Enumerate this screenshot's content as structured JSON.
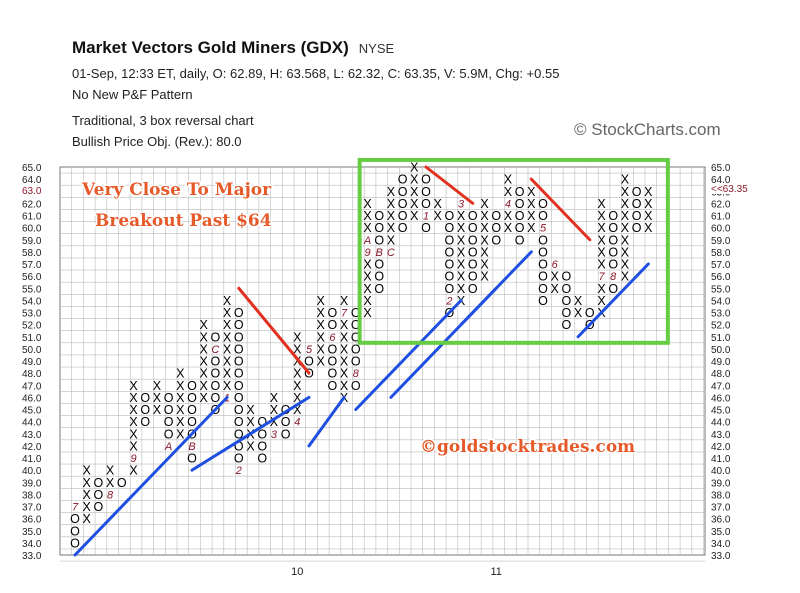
{
  "header": {
    "title": "Market Vectors Gold Miners (GDX)",
    "exchange": "NYSE",
    "quote": "01-Sep, 12:33 ET, daily, O: 62.89, H: 63.568, L: 62.32, C: 63.35, V: 5.9M, Chg: +0.55",
    "pattern": "No New P&F Pattern",
    "chart_type": "Traditional, 3 box reversal chart",
    "price_objective": "Bullish Price Obj. (Rev.): 80.0",
    "watermark": "© StockCharts.com"
  },
  "chart_data": {
    "type": "point-and-figure",
    "box_size": 1,
    "reversal": 3,
    "ylim": [
      33,
      65
    ],
    "y_ticks": [
      33,
      34,
      35,
      36,
      37,
      38,
      39,
      40,
      41,
      42,
      43,
      44,
      45,
      46,
      47,
      48,
      49,
      50,
      51,
      52,
      53,
      54,
      55,
      56,
      57,
      58,
      59,
      60,
      61,
      62,
      63,
      64,
      65
    ],
    "x_month_labels": [
      {
        "label": "10",
        "column": 19
      },
      {
        "label": "11",
        "column": 36
      }
    ],
    "grid": true,
    "columns": [
      {
        "type": "O",
        "low": 34,
        "high": 37,
        "labels": {
          "37": "7"
        }
      },
      {
        "type": "X",
        "low": 36,
        "high": 40
      },
      {
        "type": "O",
        "low": 37,
        "high": 39
      },
      {
        "type": "X",
        "low": 38,
        "high": 40,
        "labels": {
          "38": "8"
        }
      },
      {
        "type": "O",
        "low": 39,
        "high": 39
      },
      {
        "type": "X",
        "low": 40,
        "high": 47,
        "labels": {
          "41": "9"
        }
      },
      {
        "type": "O",
        "low": 44,
        "high": 46
      },
      {
        "type": "X",
        "low": 45,
        "high": 47
      },
      {
        "type": "O",
        "low": 42,
        "high": 46,
        "labels": {
          "42": "A"
        }
      },
      {
        "type": "X",
        "low": 43,
        "high": 48
      },
      {
        "type": "O",
        "low": 41,
        "high": 47,
        "labels": {
          "42": "B"
        }
      },
      {
        "type": "X",
        "low": 46,
        "high": 52
      },
      {
        "type": "O",
        "low": 45,
        "high": 51,
        "labels": {
          "50": "C"
        }
      },
      {
        "type": "X",
        "low": 46,
        "high": 54,
        "labels": {
          "46": "1"
        }
      },
      {
        "type": "O",
        "low": 40,
        "high": 53,
        "labels": {
          "40": "2"
        }
      },
      {
        "type": "X",
        "low": 42,
        "high": 45
      },
      {
        "type": "O",
        "low": 41,
        "high": 44
      },
      {
        "type": "X",
        "low": 43,
        "high": 46,
        "labels": {
          "43": "3"
        }
      },
      {
        "type": "O",
        "low": 43,
        "high": 45
      },
      {
        "type": "X",
        "low": 44,
        "high": 51,
        "labels": {
          "44": "4"
        }
      },
      {
        "type": "O",
        "low": 48,
        "high": 50,
        "labels": {
          "50": "5"
        }
      },
      {
        "type": "X",
        "low": 49,
        "high": 54
      },
      {
        "type": "O",
        "low": 47,
        "high": 53,
        "labels": {
          "51": "6"
        }
      },
      {
        "type": "X",
        "low": 46,
        "high": 54,
        "labels": {
          "53": "7"
        }
      },
      {
        "type": "O",
        "low": 47,
        "high": 53,
        "labels": {
          "48": "8"
        }
      },
      {
        "type": "X",
        "low": 53,
        "high": 62,
        "labels": {
          "58": "9",
          "59": "A"
        }
      },
      {
        "type": "O",
        "low": 55,
        "high": 61,
        "labels": {
          "58": "B"
        }
      },
      {
        "type": "X",
        "low": 58,
        "high": 63,
        "labels": {
          "58": "C"
        }
      },
      {
        "type": "O",
        "low": 60,
        "high": 64
      },
      {
        "type": "X",
        "low": 61,
        "high": 65
      },
      {
        "type": "O",
        "low": 60,
        "high": 64,
        "labels": {
          "61": "1"
        }
      },
      {
        "type": "X",
        "low": 61,
        "high": 62
      },
      {
        "type": "O",
        "low": 53,
        "high": 61,
        "labels": {
          "54": "2"
        }
      },
      {
        "type": "X",
        "low": 54,
        "high": 62,
        "labels": {
          "62": "3"
        }
      },
      {
        "type": "O",
        "low": 55,
        "high": 61
      },
      {
        "type": "X",
        "low": 56,
        "high": 62
      },
      {
        "type": "O",
        "low": 59,
        "high": 61
      },
      {
        "type": "X",
        "low": 60,
        "high": 64,
        "labels": {
          "62": "4"
        }
      },
      {
        "type": "O",
        "low": 59,
        "high": 63
      },
      {
        "type": "X",
        "low": 60,
        "high": 63
      },
      {
        "type": "O",
        "low": 54,
        "high": 62,
        "labels": {
          "60": "5"
        }
      },
      {
        "type": "X",
        "low": 55,
        "high": 57,
        "labels": {
          "57": "6"
        }
      },
      {
        "type": "O",
        "low": 52,
        "high": 56
      },
      {
        "type": "X",
        "low": 53,
        "high": 54
      },
      {
        "type": "O",
        "low": 52,
        "high": 53
      },
      {
        "type": "X",
        "low": 53,
        "high": 62,
        "labels": {
          "56": "7"
        }
      },
      {
        "type": "O",
        "low": 55,
        "high": 61,
        "labels": {
          "56": "8"
        }
      },
      {
        "type": "X",
        "low": 56,
        "high": 64
      },
      {
        "type": "O",
        "low": 60,
        "high": 63
      },
      {
        "type": "X",
        "low": 60,
        "high": 63
      }
    ],
    "trend_lines": [
      {
        "color": "#1f4fe0",
        "kind": "support",
        "from": [
          0,
          33
        ],
        "to": [
          13,
          46
        ]
      },
      {
        "color": "#1f4fe0",
        "kind": "support",
        "from": [
          10,
          40
        ],
        "to": [
          20,
          46
        ]
      },
      {
        "color": "#1f4fe0",
        "kind": "support",
        "from": [
          20,
          42
        ],
        "to": [
          23,
          46
        ]
      },
      {
        "color": "#1f4fe0",
        "kind": "support",
        "from": [
          24,
          45
        ],
        "to": [
          33,
          54
        ]
      },
      {
        "color": "#1f4fe0",
        "kind": "support",
        "from": [
          27,
          46
        ],
        "to": [
          36,
          55
        ]
      },
      {
        "color": "#1f4fe0",
        "kind": "support",
        "from": [
          33,
          52
        ],
        "to": [
          39,
          58
        ]
      },
      {
        "color": "#1f4fe0",
        "kind": "support",
        "from": [
          43,
          51
        ],
        "to": [
          49,
          57
        ]
      },
      {
        "color": "#e23020",
        "kind": "resistance",
        "from": [
          14,
          55
        ],
        "to": [
          20,
          48
        ]
      },
      {
        "color": "#e23020",
        "kind": "resistance",
        "from": [
          30,
          65
        ],
        "to": [
          34,
          62
        ]
      },
      {
        "color": "#e23020",
        "kind": "resistance",
        "from": [
          39,
          64
        ],
        "to": [
          44,
          59
        ]
      }
    ],
    "highlight_box": {
      "color": "#66cc44",
      "col_from": 25,
      "col_to": 50,
      "y_from": 51,
      "y_to": 65
    },
    "last_price_label": "<<63.35",
    "last_price": 63.35,
    "left_price_label": "63.0",
    "annotations": {
      "line1": "Very Close To Major",
      "line2": "Breakout Past $64",
      "site": "©goldstocktrades.com",
      "annotation_color": "#e65a2a"
    },
    "colors": {
      "x": "#000000",
      "o": "#000000",
      "month_label": "#8b1a2b",
      "grid": "#bbbbbb"
    }
  }
}
